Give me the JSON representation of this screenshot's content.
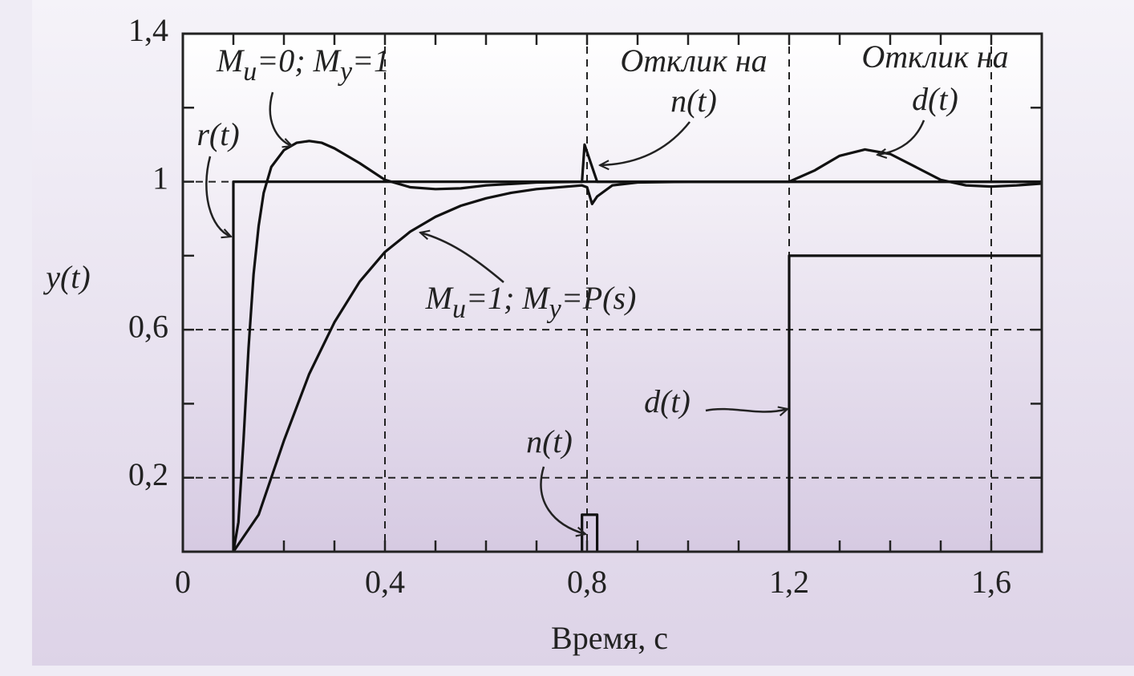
{
  "chart_data": {
    "type": "line",
    "xlabel": "Время, с",
    "ylabel": "y(t)",
    "xlim": [
      0,
      1.7
    ],
    "ylim": [
      0,
      1.4
    ],
    "xticks": [
      0,
      {
        "value": 0.4,
        "label": "0,4"
      },
      {
        "value": 0.8,
        "label": "0,8"
      },
      {
        "value": 1.2,
        "label": "1,2"
      },
      {
        "value": 1.6,
        "label": "1,6"
      }
    ],
    "yticks": [
      {
        "value": 0.2,
        "label": "0,2"
      },
      {
        "value": 0.6,
        "label": "0,6"
      },
      1,
      {
        "value": 1.4,
        "label": "1,4"
      }
    ],
    "xminor": [
      0.1,
      0.2,
      0.3,
      0.5,
      0.6,
      0.7,
      0.9,
      1.0,
      1.1,
      1.3,
      1.4,
      1.5
    ],
    "yminor": [
      0.4,
      0.8,
      1.2
    ],
    "grid": true,
    "series": [
      {
        "color": "#111111",
        "x": [
          0.1,
          0.1,
          1.7
        ],
        "values": [
          0,
          1,
          1
        ]
      },
      {
        "color": "#111111",
        "x": [
          0.1,
          0.11,
          0.12,
          0.13,
          0.14,
          0.15,
          0.16,
          0.175,
          0.2,
          0.225,
          0.25,
          0.275,
          0.3,
          0.35,
          0.4,
          0.45,
          0.5,
          0.55,
          0.6,
          0.7,
          0.79,
          0.795,
          0.81,
          0.82,
          0.9,
          1.2,
          1.25,
          1.3,
          1.35,
          1.4,
          1.45,
          1.5,
          1.55,
          1.6,
          1.65,
          1.7
        ],
        "values": [
          0,
          0.08,
          0.3,
          0.55,
          0.75,
          0.88,
          0.97,
          1.04,
          1.085,
          1.105,
          1.11,
          1.105,
          1.09,
          1.05,
          1.005,
          0.985,
          0.98,
          0.982,
          0.99,
          0.998,
          1.0,
          1.1,
          1.04,
          1.0,
          1.0,
          1.0,
          1.03,
          1.07,
          1.087,
          1.075,
          1.04,
          1.005,
          0.99,
          0.987,
          0.99,
          0.995
        ]
      },
      {
        "color": "#111111",
        "x": [
          0.1,
          0.15,
          0.2,
          0.25,
          0.3,
          0.35,
          0.4,
          0.45,
          0.5,
          0.55,
          0.6,
          0.65,
          0.7,
          0.79,
          0.8,
          0.81,
          0.82,
          0.85,
          0.9,
          1.0,
          1.7
        ],
        "values": [
          0,
          0.1,
          0.3,
          0.48,
          0.62,
          0.73,
          0.81,
          0.865,
          0.905,
          0.935,
          0.955,
          0.97,
          0.98,
          0.99,
          0.985,
          0.94,
          0.96,
          0.99,
          0.998,
          1.0,
          1.0
        ]
      },
      {
        "color": "#111111",
        "x": [
          0.79,
          0.79,
          0.82,
          0.82
        ],
        "values": [
          0,
          0.1,
          0.1,
          0
        ]
      },
      {
        "color": "#111111",
        "x": [
          1.2,
          1.2,
          1.7
        ],
        "values": [
          0,
          0.8,
          0.8
        ]
      }
    ],
    "annotations": [
      {
        "text": [
          "r(t)"
        ]
      },
      {
        "text": [
          "M",
          "u",
          "=0; M",
          "y",
          "=1"
        ]
      },
      {
        "text": [
          "M",
          "u",
          "=1;  M",
          "y",
          "=P(s)"
        ]
      },
      {
        "text": [
          "Отклик на"
        ]
      },
      {
        "text": [
          "n(t)"
        ]
      },
      {
        "text": [
          "Отклик на"
        ]
      },
      {
        "text": [
          "d(t)"
        ]
      },
      {
        "text": [
          "d(t)"
        ]
      },
      {
        "text": [
          "n(t)"
        ]
      }
    ]
  }
}
